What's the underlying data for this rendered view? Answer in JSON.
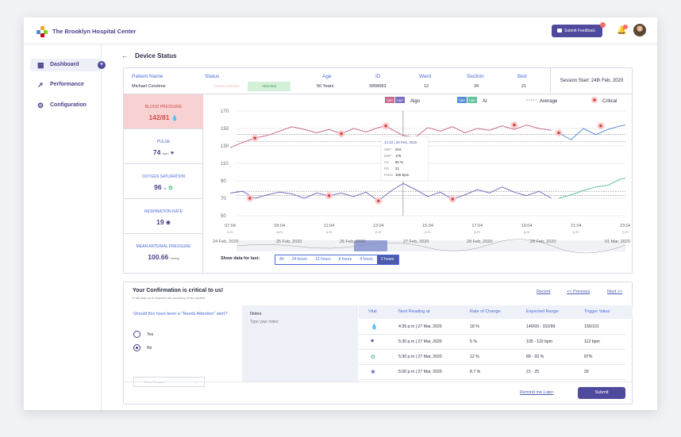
{
  "header": {
    "brand": "The Brooklyn Hospital Center",
    "feedback_label": "Submit Feedback",
    "feedback_count": "1",
    "bell_count": "1"
  },
  "sidebar": {
    "items": [
      {
        "label": "Dashboard",
        "icon": "grid-icon"
      },
      {
        "label": "Performance",
        "icon": "performance-icon"
      },
      {
        "label": "Configuration",
        "icon": "gear-icon"
      }
    ]
  },
  "page": {
    "title": "Device Status"
  },
  "patient": {
    "labels": {
      "name": "Patient Name",
      "status": "Status",
      "age": "Age",
      "id": "ID",
      "ward": "Ward",
      "section": "Section",
      "bed": "Bed"
    },
    "name": "Michael Corolene",
    "status_options": [
      "Needs Attention",
      "Attended"
    ],
    "age": "56 Years",
    "id": "3958683",
    "ward": "12",
    "section": "34",
    "bed": "21",
    "session": "Session Start: 24th Feb, 2020"
  },
  "vitals": [
    {
      "name": "BLOOD PRESSURE",
      "value": "142/81",
      "unit": "",
      "icon": "blood-drop-icon"
    },
    {
      "name": "PULSE",
      "value": "74",
      "unit": "bpm",
      "icon": "heart-icon"
    },
    {
      "name": "OXYGEN SATURATION",
      "value": "96",
      "unit": "%",
      "icon": "lungs-o2-icon"
    },
    {
      "name": "RESPIRATION RATE",
      "value": "19",
      "unit": "",
      "icon": "lungs-icon"
    },
    {
      "name": "MEAN ARTERIAL PRESSURE",
      "value": "100.66",
      "unit": "mmhg",
      "icon": ""
    }
  ],
  "chart_data": {
    "type": "line",
    "legend": [
      {
        "chips": [
          "SBP",
          "DBP"
        ],
        "label": "Algo"
      },
      {
        "chips": [
          "SBP",
          "DBP"
        ],
        "label": "AI"
      },
      {
        "label": "Average"
      },
      {
        "label": "Critical"
      }
    ],
    "y_ticks": [
      170,
      150,
      130,
      110,
      90,
      70,
      50
    ],
    "ylim": [
      50,
      170
    ],
    "x_ticks": [
      {
        "t": "07:04",
        "p": "a.m"
      },
      {
        "t": "09:04",
        "p": "a.m"
      },
      {
        "t": "11:04",
        "p": "a.m"
      },
      {
        "t": "13:04",
        "p": "p.m"
      },
      {
        "t": "15:04",
        "p": "p.m"
      },
      {
        "t": "17:04",
        "p": "p.m"
      },
      {
        "t": "19:04",
        "p": "p.m"
      },
      {
        "t": "21:04",
        "p": "p.m"
      },
      {
        "t": "23:04",
        "p": "p.m"
      }
    ],
    "x_hours": [
      7,
      23
    ],
    "series": [
      {
        "key": "sbp_algo",
        "color": "#c86b8d",
        "x": [
          7,
          7.5,
          8,
          8.5,
          9,
          9.5,
          10,
          10.5,
          11,
          11.5,
          12,
          12.5,
          13,
          13.3,
          13.6,
          14,
          14.5,
          15,
          15.5,
          16,
          16.5,
          17,
          17.5,
          18,
          18.5,
          19,
          19.5,
          20
        ],
        "values": [
          128,
          134,
          139,
          142,
          147,
          152,
          149,
          145,
          149,
          144,
          150,
          146,
          151,
          153,
          148,
          142,
          140,
          151,
          147,
          152,
          145,
          150,
          148,
          153,
          149,
          154,
          150,
          148
        ]
      },
      {
        "key": "dbp_algo",
        "color": "#7a6fc0",
        "x": [
          7,
          7.5,
          8,
          8.5,
          9,
          9.5,
          10,
          10.5,
          11,
          11.5,
          12,
          12.5,
          13,
          13.3,
          13.6,
          14,
          14.5,
          15,
          15.5,
          16,
          16.5,
          17,
          17.5,
          18,
          18.5,
          19,
          19.5,
          20
        ],
        "values": [
          76,
          78,
          70,
          74,
          77,
          75,
          70,
          76,
          73,
          76,
          72,
          77,
          67,
          74,
          80,
          87,
          80,
          72,
          77,
          69,
          74,
          80,
          76,
          83,
          77,
          73,
          78,
          70
        ]
      },
      {
        "key": "sbp_ai",
        "color": "#5a8ed6",
        "x": [
          20.3,
          20.8,
          21.3,
          21.8,
          22.3,
          22.8,
          23
        ],
        "values": [
          145,
          137,
          150,
          143,
          149,
          153,
          154
        ]
      },
      {
        "key": "dbp_ai",
        "color": "#62c39b",
        "x": [
          20.3,
          20.8,
          21.3,
          21.8,
          22.3,
          22.8,
          23
        ],
        "values": [
          70,
          74,
          79,
          83,
          85,
          92,
          93
        ]
      }
    ],
    "averages": [
      143,
      135,
      78,
      73
    ],
    "critical": [
      {
        "x": 8,
        "y": 139
      },
      {
        "x": 11.5,
        "y": 144
      },
      {
        "x": 13.3,
        "y": 153
      },
      {
        "x": 18.5,
        "y": 154
      },
      {
        "x": 20.3,
        "y": 145
      },
      {
        "x": 22,
        "y": 153
      },
      {
        "x": 7.8,
        "y": 70
      },
      {
        "x": 11,
        "y": 73
      },
      {
        "x": 13,
        "y": 67
      },
      {
        "x": 16,
        "y": 69
      }
    ],
    "cursor_x": 14,
    "tooltip": {
      "title": "14:10 | 26 Feb, 2020",
      "lines": [
        {
          "label": "SBP",
          "value": "204"
        },
        {
          "label": "DBP",
          "value": "176"
        },
        {
          "label": "O2",
          "value": "85 %"
        },
        {
          "label": "RR",
          "value": "21"
        },
        {
          "label": "Pulse",
          "value": "105 bpm"
        }
      ]
    },
    "overview_dates": [
      "24 Feb, 2020",
      "25 Feb, 2020",
      "26 Feb, 2020",
      "27 Feb, 2020",
      "28 Feb, 2020",
      "29 Feb, 2020",
      "01 Mar, 2020"
    ]
  },
  "range": {
    "label": "Show data for last:",
    "options": [
      "All",
      "24 hours",
      "12 hours",
      "8 hours",
      "4 hours",
      "2 hours"
    ],
    "selected": "2 hours"
  },
  "confirm": {
    "title": "Your Confirmation is critical to us!",
    "subtitle": "It will help us to improve the accuracy of the system.",
    "links": [
      "Recent",
      "<< Previous",
      "Next >>"
    ],
    "question": "Should this have been a \"Needs Attention\" alert?",
    "yes": "Yes",
    "no": "No",
    "selected": "No",
    "reason_placeholder": "Select Reason",
    "notes_label": "Notes",
    "notes_placeholder": "Type your notes",
    "columns": [
      "Vital",
      "Next Reading at",
      "Rate of Change",
      "Expected Range",
      "Trigger Value"
    ],
    "rows": [
      {
        "icon": "blood-drop-icon",
        "next": "4:35 p.m | 27 Mar, 2020",
        "rate": "18 %",
        "range": "140/93 - 152/99",
        "trigger": "155/101"
      },
      {
        "icon": "heart-icon",
        "next": "5:30 p.m | 27 Mar, 2020",
        "rate": "5 %",
        "range": "105 - 110 bpm",
        "trigger": "112 bpm"
      },
      {
        "icon": "lungs-o2-icon",
        "next": "5:30 p.m | 27 Mar, 2020",
        "rate": "12 %",
        "range": "89 - 93 %",
        "trigger": "87%"
      },
      {
        "icon": "lungs-icon",
        "next": "5:00 p.m | 27 Mar, 2020",
        "rate": "8.7 %",
        "range": "21 - 25",
        "trigger": "26"
      }
    ],
    "remind": "Remind me Later",
    "submit": "Submit"
  }
}
